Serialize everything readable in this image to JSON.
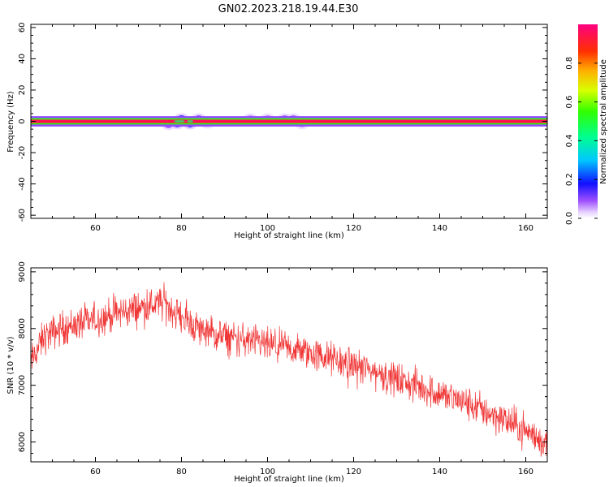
{
  "title": "GN02.2023.218.19.44.E30",
  "chart_data": [
    {
      "type": "heatmap",
      "xlabel": "Height of straight line (km)",
      "ylabel": "Frequency (Hz)",
      "xlim": [
        45,
        165
      ],
      "ylim": [
        -62,
        62
      ],
      "xticks": [
        60,
        80,
        100,
        120,
        140,
        160
      ],
      "xtick_labels": [
        "60",
        "80",
        "100",
        "120",
        "140",
        "160"
      ],
      "yticks": [
        -60,
        -40,
        -20,
        0,
        20,
        40,
        60
      ],
      "ytick_labels": [
        "-60",
        "-40",
        "-20",
        "0",
        "20",
        "40",
        "60"
      ],
      "colorbar": {
        "label": "Normalized spectral amplitude",
        "ticks": [
          0.0,
          0.2,
          0.4,
          0.6,
          0.8
        ],
        "tick_labels": [
          "0.0",
          "0.2",
          "0.4",
          "0.6",
          "0.8"
        ],
        "range": [
          0,
          1
        ]
      },
      "main_band": {
        "freq_center": 0,
        "amplitude": 0.95,
        "x_range": [
          45,
          165
        ]
      },
      "side_bands": [
        {
          "freq_offset": 1.2,
          "amplitude": 0.55
        },
        {
          "freq_offset": -1.2,
          "amplitude": 0.55
        },
        {
          "freq_offset": 2.5,
          "amplitude": 0.1
        },
        {
          "freq_offset": -2.5,
          "amplitude": 0.1
        }
      ],
      "blobs": [
        {
          "x": 77,
          "freq": -2,
          "amplitude": 0.15
        },
        {
          "x": 79,
          "freq": -1.5,
          "amplitude": 0.25
        },
        {
          "x": 80,
          "freq": 1.5,
          "amplitude": 0.3
        },
        {
          "x": 82,
          "freq": -1.5,
          "amplitude": 0.3
        },
        {
          "x": 84,
          "freq": 1.5,
          "amplitude": 0.2
        },
        {
          "x": 86,
          "freq": -1,
          "amplitude": 0.15
        },
        {
          "x": 96,
          "freq": 1.5,
          "amplitude": 0.1
        },
        {
          "x": 100,
          "freq": 1.5,
          "amplitude": 0.1
        },
        {
          "x": 104,
          "freq": 1.5,
          "amplitude": 0.15
        },
        {
          "x": 106,
          "freq": 1.5,
          "amplitude": 0.15
        },
        {
          "x": 108,
          "freq": -1.5,
          "amplitude": 0.08
        }
      ]
    },
    {
      "type": "line",
      "xlabel": "Height of straight line (km)",
      "ylabel": "SNR (10 * v/v)",
      "xlim": [
        45,
        165
      ],
      "ylim": [
        5650,
        9070
      ],
      "xticks": [
        60,
        80,
        100,
        120,
        140,
        160
      ],
      "xtick_labels": [
        "60",
        "80",
        "100",
        "120",
        "140",
        "160"
      ],
      "yticks": [
        6000,
        7000,
        8000,
        9000
      ],
      "ytick_labels": [
        "6000",
        "7000",
        "8000",
        "9000"
      ],
      "color": "#f03535",
      "trend": {
        "x": [
          45,
          48,
          52,
          56,
          60,
          64,
          68,
          72,
          76,
          80,
          84,
          88,
          92,
          96,
          100,
          104,
          108,
          112,
          116,
          120,
          124,
          128,
          132,
          136,
          140,
          144,
          148,
          152,
          156,
          160,
          163,
          165
        ],
        "y": [
          7400,
          7850,
          8000,
          8080,
          8150,
          8250,
          8320,
          8400,
          8450,
          8200,
          8000,
          7880,
          7820,
          7780,
          7700,
          7650,
          7600,
          7520,
          7440,
          7350,
          7260,
          7150,
          7050,
          6950,
          6850,
          6750,
          6620,
          6500,
          6350,
          6200,
          6050,
          5950
        ]
      },
      "noise_amplitude": 300
    }
  ]
}
